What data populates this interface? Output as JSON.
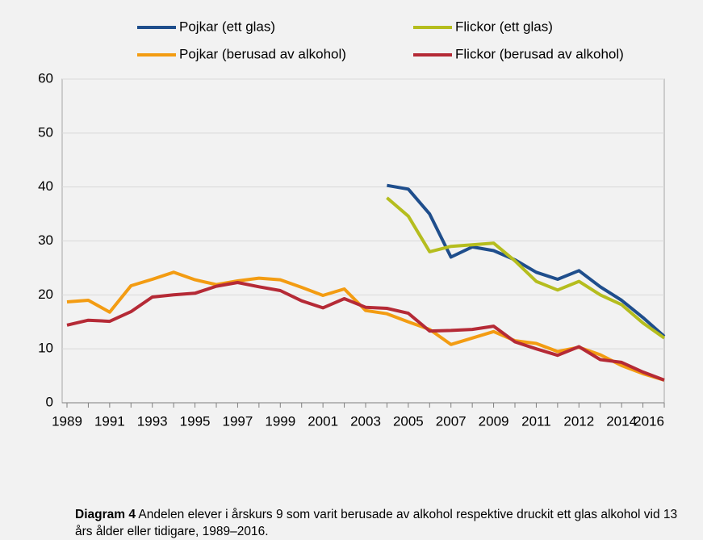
{
  "chart_data": {
    "type": "line",
    "categories": [
      "1989",
      null,
      "1991",
      null,
      "1993",
      null,
      "1995",
      null,
      "1997",
      null,
      "1999",
      null,
      "2001",
      null,
      "2003",
      null,
      "2005",
      null,
      "2007",
      null,
      "2009",
      null,
      "2011",
      null,
      "2012",
      null,
      "2014",
      null,
      "2016"
    ],
    "series": [
      {
        "name": "Pojkar (ett glas)",
        "color": "#1f4e8c",
        "values": [
          null,
          null,
          null,
          null,
          null,
          null,
          null,
          null,
          null,
          null,
          null,
          null,
          null,
          null,
          null,
          40.3,
          39.6,
          35.0,
          27.0,
          28.9,
          28.2,
          26.5,
          24.2,
          22.9,
          24.5,
          21.5,
          19.0,
          15.8,
          12.3
        ]
      },
      {
        "name": "Flickor (ett glas)",
        "color": "#b5bd1e",
        "values": [
          null,
          null,
          null,
          null,
          null,
          null,
          null,
          null,
          null,
          null,
          null,
          null,
          null,
          null,
          null,
          38.0,
          34.6,
          28.0,
          29.0,
          29.3,
          29.6,
          26.3,
          22.5,
          20.9,
          22.5,
          20.0,
          18.2,
          14.8,
          12.0
        ]
      },
      {
        "name": "Pojkar (berusad av alkohol)",
        "color": "#f39c12",
        "values": [
          18.7,
          19.0,
          16.8,
          21.7,
          22.9,
          24.2,
          22.8,
          21.9,
          22.6,
          23.1,
          22.8,
          21.4,
          19.9,
          21.1,
          17.1,
          16.5,
          15.0,
          13.6,
          10.8,
          12.0,
          13.2,
          11.5,
          11.0,
          9.5,
          10.3,
          8.9,
          6.9,
          5.4,
          4.2
        ]
      },
      {
        "name": "Flickor (berusad av alkohol)",
        "color": "#b52a36",
        "values": [
          14.4,
          15.3,
          15.1,
          16.9,
          19.6,
          20.0,
          20.3,
          21.6,
          22.3,
          21.5,
          20.8,
          18.9,
          17.6,
          19.3,
          17.7,
          17.5,
          16.6,
          13.3,
          13.4,
          13.6,
          14.2,
          11.3,
          10.0,
          8.8,
          10.4,
          8.0,
          7.5,
          5.7,
          4.2
        ]
      }
    ],
    "ylim": [
      0,
      60
    ],
    "yticks": [
      0,
      10,
      20,
      30,
      40,
      50,
      60
    ],
    "grid": true,
    "legend": "top",
    "caption": {
      "label": "Diagram 4",
      "text": "Andelen elever i årskurs 9 som varit berusade av alkohol respektive druckit ett glas alkohol vid 13 års ålder eller tidigare, 1989–2016."
    }
  }
}
